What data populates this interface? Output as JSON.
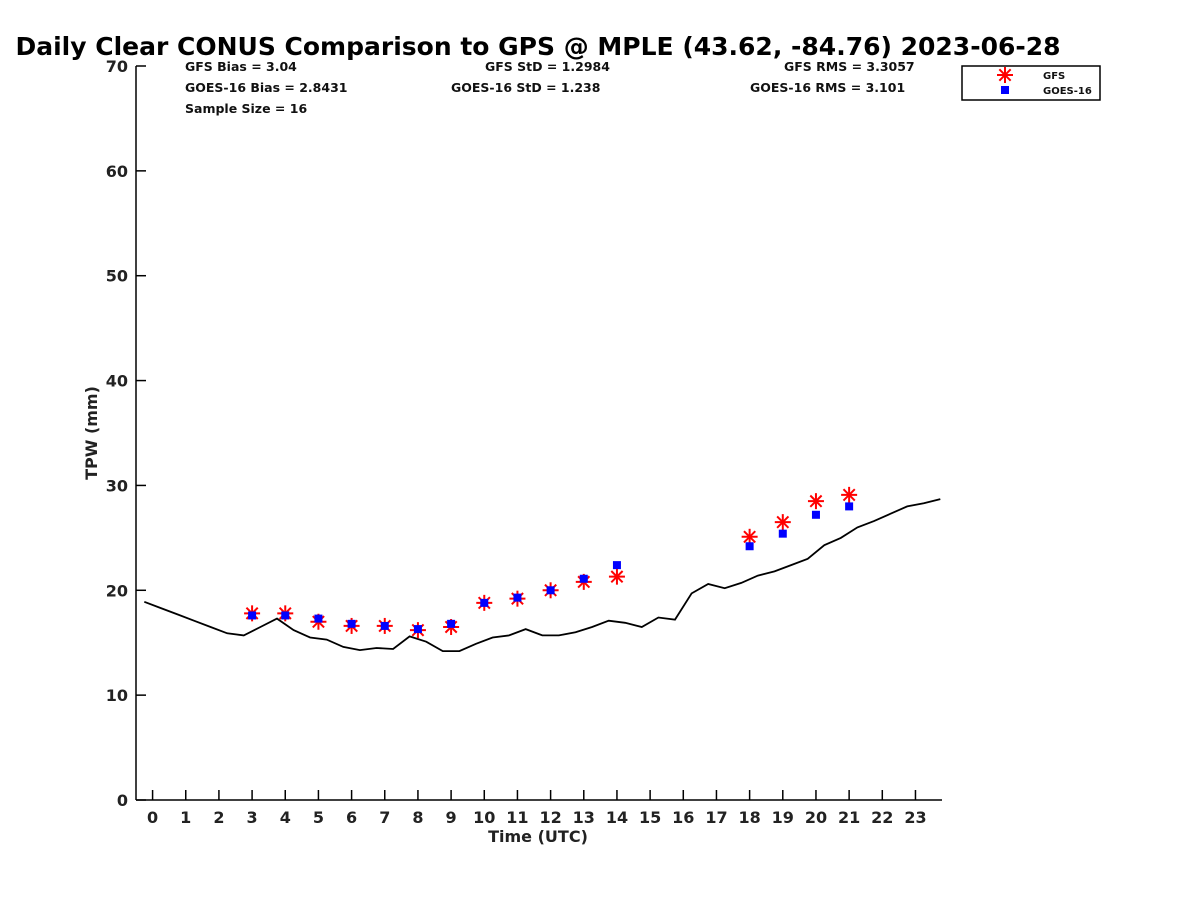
{
  "chart_data": {
    "type": "scatter",
    "title": "Daily Clear CONUS Comparison to GPS @ MPLE (43.62, -84.76) 2023-06-28",
    "xlabel": "Time (UTC)",
    "ylabel": "TPW (mm)",
    "xlim": [
      -0.5,
      23.8
    ],
    "ylim": [
      0,
      70
    ],
    "x_ticks": [
      0,
      1,
      2,
      3,
      4,
      5,
      6,
      7,
      8,
      9,
      10,
      11,
      12,
      13,
      14,
      15,
      16,
      17,
      18,
      19,
      20,
      21,
      22,
      23
    ],
    "y_ticks": [
      0,
      10,
      20,
      30,
      40,
      50,
      60,
      70
    ],
    "stats": {
      "gfs_bias": "GFS Bias = 3.04",
      "goes_bias": "GOES-16 Bias = 2.8431",
      "sample_size": "Sample Size = 16",
      "gfs_std": "GFS StD = 1.2984",
      "goes_std": "GOES-16 StD = 1.238",
      "gfs_rms": "GFS RMS = 3.3057",
      "goes_rms": "GOES-16 RMS = 3.101"
    },
    "legend": {
      "position": "top-right",
      "entries": [
        "GFS",
        "GOES-16"
      ]
    },
    "colors": {
      "gps": "#000000",
      "gfs": "#ff0000",
      "goes": "#0000ff"
    },
    "series": [
      {
        "name": "GPS",
        "style": "line",
        "x": [
          -0.25,
          0.25,
          0.75,
          1.25,
          1.75,
          2.25,
          2.75,
          3.25,
          3.75,
          4.25,
          4.75,
          5.25,
          5.75,
          6.25,
          6.75,
          7.25,
          7.75,
          8.25,
          8.75,
          9.25,
          9.75,
          10.25,
          10.75,
          11.25,
          11.75,
          12.25,
          12.75,
          13.25,
          13.75,
          14.25,
          14.75,
          15.25,
          15.75,
          16.25,
          16.75,
          17.25,
          17.75,
          18.25,
          18.75,
          19.25,
          19.75,
          20.25,
          20.75,
          21.25,
          21.75,
          22.25,
          22.75,
          23.25,
          23.75
        ],
        "y": [
          18.9,
          18.3,
          17.7,
          17.1,
          16.5,
          15.9,
          15.7,
          16.5,
          17.3,
          16.2,
          15.5,
          15.3,
          14.6,
          14.3,
          14.5,
          14.4,
          15.6,
          15.1,
          14.2,
          14.2,
          14.9,
          15.5,
          15.7,
          16.3,
          15.7,
          15.7,
          16.0,
          16.5,
          17.1,
          16.9,
          16.5,
          17.4,
          17.2,
          19.7,
          20.6,
          20.2,
          20.7,
          21.4,
          21.8,
          22.4,
          23.0,
          24.3,
          25.0,
          26.0,
          26.6,
          27.3,
          28.0,
          28.3,
          28.7
        ]
      },
      {
        "name": "GFS",
        "style": "asterisk",
        "x": [
          3,
          4,
          5,
          6,
          7,
          8,
          9,
          10,
          11,
          12,
          13,
          14,
          18,
          19,
          20,
          21
        ],
        "y": [
          17.8,
          17.8,
          17.0,
          16.6,
          16.6,
          16.2,
          16.5,
          18.8,
          19.2,
          20.0,
          20.8,
          21.3,
          25.1,
          26.5,
          28.5,
          29.1
        ]
      },
      {
        "name": "GOES-16",
        "style": "square",
        "x": [
          3,
          4,
          5,
          6,
          7,
          8,
          9,
          10,
          11,
          12,
          13,
          14,
          18,
          19,
          20,
          21
        ],
        "y": [
          17.6,
          17.6,
          17.3,
          16.8,
          16.6,
          16.3,
          16.8,
          18.8,
          19.3,
          20.0,
          21.1,
          22.4,
          24.2,
          25.4,
          27.2,
          28.0
        ]
      }
    ]
  }
}
